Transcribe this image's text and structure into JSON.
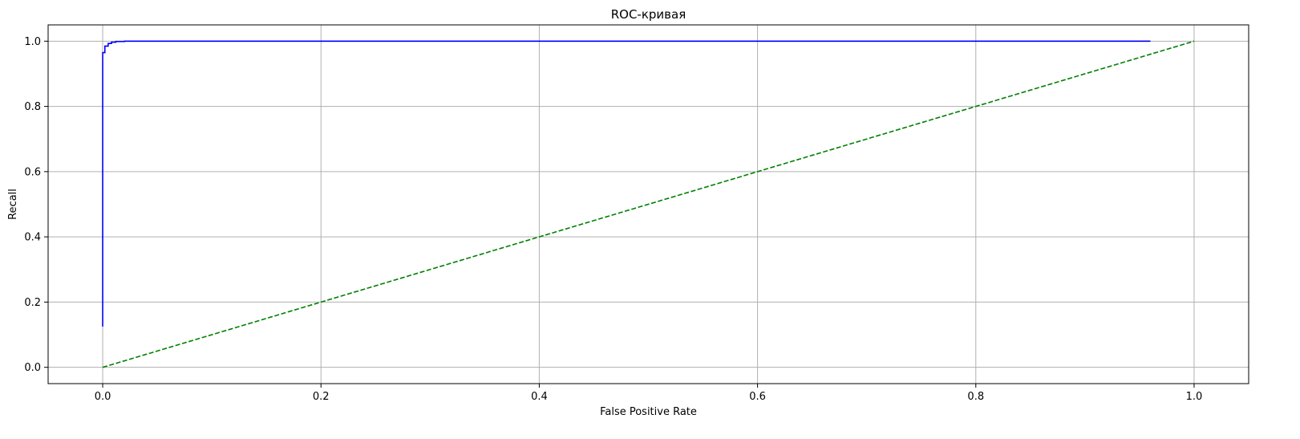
{
  "chart_data": {
    "type": "line",
    "title": "ROC-кривая",
    "xlabel": "False Positive Rate",
    "ylabel": "Recall",
    "xlim": [
      -0.05,
      1.05
    ],
    "ylim": [
      -0.05,
      1.05
    ],
    "xticks": [
      0.0,
      0.2,
      0.4,
      0.6,
      0.8,
      1.0
    ],
    "xtick_labels": [
      "0.0",
      "0.2",
      "0.4",
      "0.6",
      "0.8",
      "1.0"
    ],
    "yticks": [
      0.0,
      0.2,
      0.4,
      0.6,
      0.8,
      1.0
    ],
    "ytick_labels": [
      "0.0",
      "0.2",
      "0.4",
      "0.6",
      "0.8",
      "1.0"
    ],
    "grid": true,
    "series": [
      {
        "color": "#0000ff",
        "style": "solid",
        "x": [
          0.0,
          0.0,
          0.002,
          0.002,
          0.005,
          0.005,
          0.008,
          0.008,
          0.012,
          0.012,
          0.02,
          0.02,
          0.96
        ],
        "y": [
          0.125,
          0.965,
          0.965,
          0.985,
          0.985,
          0.993,
          0.993,
          0.997,
          0.997,
          0.999,
          0.999,
          1.0,
          1.0
        ]
      },
      {
        "color": "#008000",
        "style": "dashed",
        "x": [
          0.0,
          1.0
        ],
        "y": [
          0.0,
          1.0
        ]
      }
    ]
  }
}
